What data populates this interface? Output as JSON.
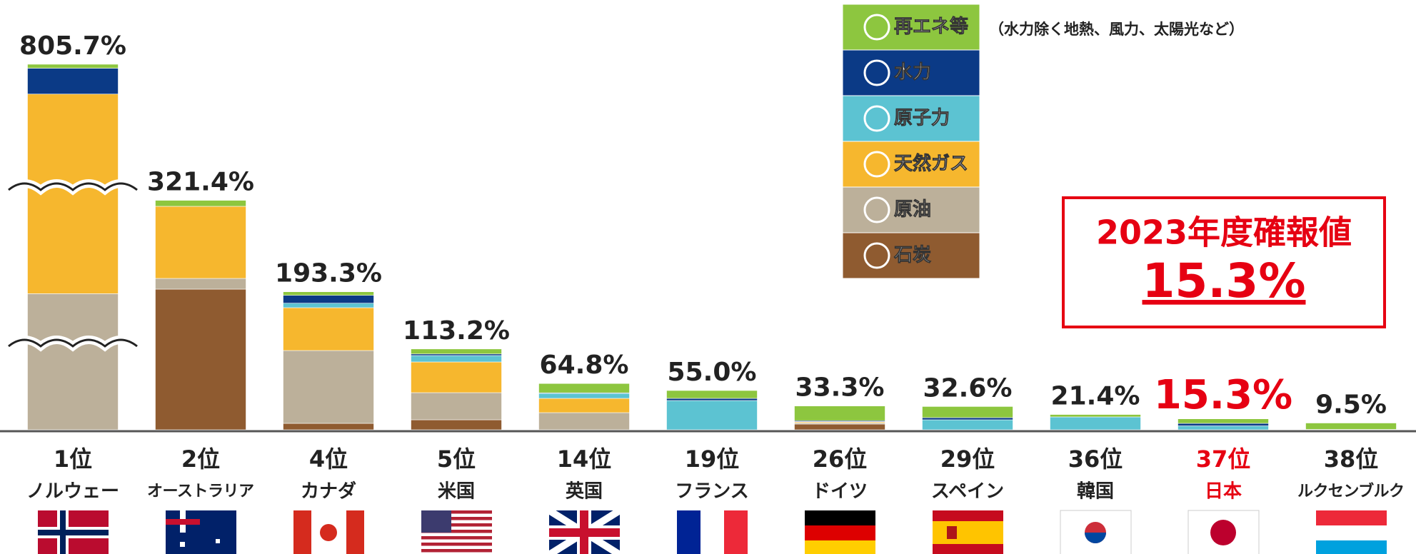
{
  "chart_data": {
    "type": "stacked_bar",
    "categories": [
      "ノルウェー",
      "オーストラリア",
      "カナダ",
      "米国",
      "英国",
      "フランス",
      "ドイツ",
      "スペイン",
      "韓国",
      "日本",
      "ルクセンブルク"
    ],
    "ranks": [
      "1位",
      "2位",
      "4位",
      "5位",
      "14位",
      "19位",
      "26位",
      "29位",
      "36位",
      "37位",
      "38位"
    ],
    "totals": [
      805.7,
      321.4,
      193.3,
      113.2,
      64.8,
      55.0,
      33.3,
      32.6,
      21.4,
      15.3,
      9.5
    ],
    "total_labels": [
      "805.7%",
      "321.4%",
      "193.3%",
      "113.2%",
      "64.8%",
      "55.0%",
      "33.3%",
      "32.6%",
      "21.4%",
      "15.3%",
      "9.5%"
    ],
    "series": [
      {
        "name": "石炭",
        "color": "#8f5b30",
        "values": [
          0,
          197,
          9,
          14,
          0,
          0,
          8,
          0,
          0,
          0,
          0
        ]
      },
      {
        "name": "原油",
        "color": "#bcb09a",
        "values": [
          300,
          15,
          102,
          38,
          24,
          0,
          1.5,
          0,
          0,
          0,
          0
        ]
      },
      {
        "name": "天然ガス",
        "color": "#f6b72e",
        "values": [
          440,
          101,
          60,
          43,
          20,
          0,
          1.5,
          0,
          0,
          0,
          0
        ]
      },
      {
        "name": "原子力",
        "color": "#5cc3d2",
        "values": [
          0,
          0,
          6.3,
          9,
          7,
          41,
          0.5,
          14,
          18,
          5.5,
          0
        ]
      },
      {
        "name": "水力",
        "color": "#0b3a86",
        "values": [
          57,
          0,
          11,
          2.2,
          0.8,
          3,
          1.3,
          3,
          0,
          3.5,
          0.5
        ]
      },
      {
        "name": "再エネ等",
        "color": "#8dc63f",
        "values": [
          8.7,
          8.4,
          5,
          7,
          13,
          11,
          20.5,
          15.6,
          3.4,
          6.3,
          9.0
        ]
      }
    ],
    "legend_note": "（水力除く地熱、風力、太陽光など）",
    "highlight_category": "日本",
    "highlight_color": "#e60012",
    "annotation": {
      "title": "2023年度確報値",
      "value": "15.3%"
    }
  }
}
